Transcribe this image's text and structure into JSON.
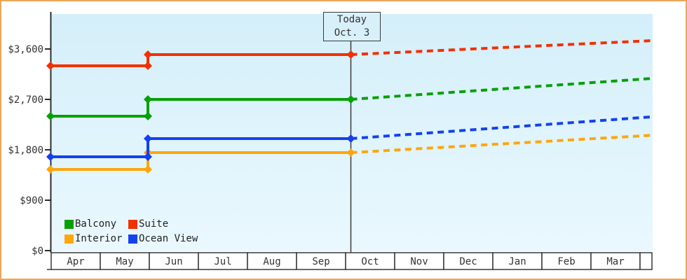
{
  "frame": {
    "border_color": "#EBA65A",
    "page_background": "#FFFFFF"
  },
  "plot": {
    "bg_top_color": "#D4EFFA",
    "bg_bottom_color": "#EAF8FE",
    "axis_color": "#2b2b2b",
    "text_color": "#333333"
  },
  "today_box": {
    "line1": "Today",
    "line2": "Oct. 3"
  },
  "chart_data": {
    "type": "line",
    "title": "",
    "xlabel": "",
    "ylabel": "",
    "x_categories": [
      "Apr",
      "May",
      "Jun",
      "Jul",
      "Aug",
      "Sep",
      "Oct",
      "Nov",
      "Dec",
      "Jan",
      "Feb",
      "Mar"
    ],
    "y_tick_labels": [
      "$3,600",
      "$2,700",
      "$1,800",
      "$900",
      "$0"
    ],
    "y_tick_values": [
      3600,
      2700,
      1800,
      900,
      0
    ],
    "ylim": [
      0,
      4225
    ],
    "grid": false,
    "legend_position": "bottom-left-inside",
    "legend_order": [
      "Balcony",
      "Suite",
      "Interior",
      "Ocean View"
    ],
    "today_marker": {
      "label": "Today Oct. 3",
      "month": "Oct",
      "day": 3,
      "month_index": 6,
      "month_fraction": 0.1
    },
    "price_increase_month": "Jun",
    "price_increase_month_index": 2,
    "series": [
      {
        "name": "Suite",
        "color": "#F23000",
        "initial_price": 3300,
        "price_after_increase": 3500,
        "price_at_today": 3500,
        "projected_price_end": 3750,
        "projection_style": "dashed"
      },
      {
        "name": "Balcony",
        "color": "#06A006",
        "initial_price": 2400,
        "price_after_increase": 2700,
        "price_at_today": 2700,
        "projected_price_end": 3075,
        "projection_style": "dashed"
      },
      {
        "name": "Interior",
        "color": "#FFA60D",
        "initial_price": 1450,
        "price_after_increase": 1750,
        "price_at_today": 1750,
        "projected_price_end": 2060,
        "projection_style": "dashed"
      },
      {
        "name": "Ocean View",
        "color": "#1540F0",
        "initial_price": 1675,
        "price_after_increase": 2000,
        "price_at_today": 2000,
        "projected_price_end": 2390,
        "projection_style": "dashed"
      }
    ]
  }
}
